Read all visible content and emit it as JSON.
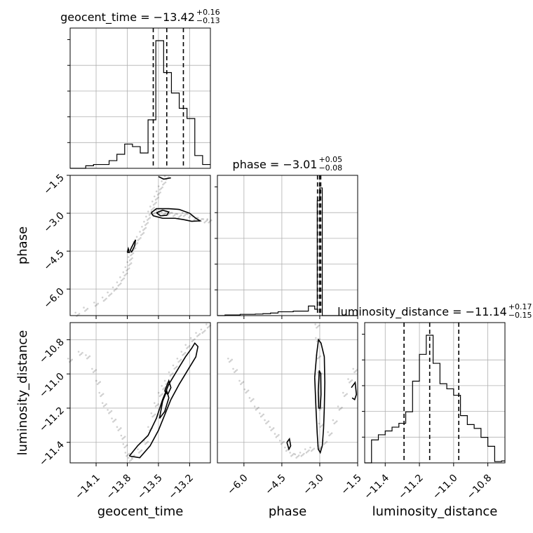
{
  "chart_data": {
    "type": "corner",
    "parameters": [
      {
        "name": "geocent_time",
        "label": "geocent_time",
        "title_value": "−13.42",
        "plus": "+0.16",
        "minus": "−0.13",
        "range": [
          -14.35,
          -13.0
        ],
        "ticks": [
          -14.1,
          -13.8,
          -13.5,
          -13.2
        ],
        "tick_labels": [
          "−14.1",
          "−13.8",
          "−13.5",
          "−13.2"
        ],
        "quantiles": [
          -13.55,
          -13.42,
          -13.26
        ],
        "hist_edges": [
          -14.35,
          -14.275,
          -14.2,
          -14.125,
          -14.05,
          -13.975,
          -13.9,
          -13.825,
          -13.75,
          -13.675,
          -13.6,
          -13.525,
          -13.45,
          -13.375,
          -13.3,
          -13.225,
          -13.15,
          -13.075,
          -13.0
        ],
        "hist_counts": [
          0,
          0,
          0.02,
          0.03,
          0.03,
          0.06,
          0.11,
          0.19,
          0.17,
          0.12,
          0.38,
          1.0,
          0.75,
          0.59,
          0.47,
          0.39,
          0.1,
          0.03
        ]
      },
      {
        "name": "phase",
        "label": "phase",
        "title_value": "−3.01",
        "plus": "+0.05",
        "minus": "−0.08",
        "range": [
          -7.05,
          -1.5
        ],
        "ticks": [
          -6.0,
          -4.5,
          -3.0,
          -1.5
        ],
        "tick_labels": [
          "−6.0",
          "−4.5",
          "−3.0",
          "−1.5"
        ],
        "quantiles": [
          -3.09,
          -3.01,
          -2.96
        ],
        "hist_edges": [
          -7.05,
          -6.75,
          -6.45,
          -6.15,
          -5.85,
          -5.55,
          -5.25,
          -4.95,
          -4.65,
          -4.35,
          -4.05,
          -3.75,
          -3.45,
          -3.2,
          -3.1,
          -3.0,
          -2.9,
          -1.5
        ],
        "hist_counts": [
          0,
          0.005,
          0.005,
          0.01,
          0.01,
          0.012,
          0.015,
          0.02,
          0.03,
          0.03,
          0.035,
          0.035,
          0.075,
          0.05,
          0.9,
          1.0,
          0.0
        ]
      },
      {
        "name": "luminosity_distance",
        "label": "luminosity_distance",
        "title_value": "−11.14",
        "plus": "+0.17",
        "minus": "−0.15",
        "range": [
          -11.52,
          -10.7
        ],
        "ticks": [
          -11.4,
          -11.2,
          -11.0,
          -10.8
        ],
        "tick_labels": [
          "−11.4",
          "−11.2",
          "−11.0",
          "−10.8"
        ],
        "quantiles": [
          -11.29,
          -11.14,
          -10.97
        ],
        "hist_edges": [
          -11.52,
          -11.48,
          -11.44,
          -11.4,
          -11.36,
          -11.32,
          -11.28,
          -11.24,
          -11.2,
          -11.16,
          -11.12,
          -11.08,
          -11.04,
          -11.0,
          -10.96,
          -10.92,
          -10.88,
          -10.84,
          -10.8,
          -10.76,
          -10.72,
          -10.7
        ],
        "hist_counts": [
          0,
          0.18,
          0.22,
          0.25,
          0.28,
          0.31,
          0.4,
          0.64,
          0.85,
          1.0,
          0.78,
          0.62,
          0.58,
          0.53,
          0.37,
          0.3,
          0.27,
          0.2,
          0.13,
          0.01,
          0.015
        ]
      }
    ],
    "panels": [
      {
        "x": "geocent_time",
        "y": "phase",
        "scatter": [
          [
            -14.28,
            -7.0
          ],
          [
            -14.2,
            -6.8
          ],
          [
            -14.1,
            -6.6
          ],
          [
            -14.02,
            -6.4
          ],
          [
            -13.97,
            -6.2
          ],
          [
            -13.92,
            -6.0
          ],
          [
            -13.88,
            -5.8
          ],
          [
            -13.85,
            -5.6
          ],
          [
            -13.82,
            -5.4
          ],
          [
            -13.8,
            -5.2
          ],
          [
            -13.78,
            -5.0
          ],
          [
            -13.77,
            -4.8
          ],
          [
            -13.76,
            -4.6
          ],
          [
            -13.74,
            -4.4
          ],
          [
            -13.72,
            -4.2
          ],
          [
            -13.69,
            -4.0
          ],
          [
            -13.66,
            -3.8
          ],
          [
            -13.64,
            -3.6
          ],
          [
            -13.62,
            -3.4
          ],
          [
            -13.6,
            -3.2
          ],
          [
            -13.58,
            -3.0
          ],
          [
            -13.56,
            -2.8
          ],
          [
            -13.54,
            -2.6
          ],
          [
            -13.52,
            -2.4
          ],
          [
            -13.5,
            -2.2
          ],
          [
            -13.48,
            -2.0
          ],
          [
            -13.45,
            -1.8
          ],
          [
            -13.42,
            -1.6
          ],
          [
            -13.55,
            -3.0
          ],
          [
            -13.5,
            -2.95
          ],
          [
            -13.45,
            -3.02
          ],
          [
            -13.4,
            -3.0
          ],
          [
            -13.35,
            -3.05
          ],
          [
            -13.3,
            -3.1
          ],
          [
            -13.25,
            -3.05
          ],
          [
            -13.2,
            -3.1
          ],
          [
            -13.15,
            -3.2
          ],
          [
            -13.1,
            -3.25
          ],
          [
            -13.05,
            -3.3
          ],
          [
            -13.01,
            -3.3
          ]
        ],
        "contours": [
          [
            [
              -13.57,
              -2.98
            ],
            [
              -13.52,
              -2.82
            ],
            [
              -13.4,
              -2.82
            ],
            [
              -13.3,
              -2.85
            ],
            [
              -13.2,
              -3.0
            ],
            [
              -13.14,
              -3.2
            ],
            [
              -13.1,
              -3.3
            ],
            [
              -13.18,
              -3.32
            ],
            [
              -13.26,
              -3.25
            ],
            [
              -13.34,
              -3.2
            ],
            [
              -13.46,
              -3.2
            ],
            [
              -13.55,
              -3.1
            ],
            [
              -13.57,
              -2.98
            ]
          ],
          [
            [
              -13.52,
              -2.98
            ],
            [
              -13.46,
              -2.88
            ],
            [
              -13.4,
              -2.95
            ],
            [
              -13.42,
              -3.08
            ],
            [
              -13.48,
              -3.1
            ],
            [
              -13.52,
              -2.98
            ]
          ],
          [
            [
              -13.76,
              -4.55
            ],
            [
              -13.73,
              -4.3
            ],
            [
              -13.72,
              -4.05
            ],
            [
              -13.74,
              -4.2
            ],
            [
              -13.77,
              -4.45
            ],
            [
              -13.76,
              -4.55
            ]
          ],
          [
            [
              -13.8,
              -4.55
            ],
            [
              -13.79,
              -4.4
            ],
            [
              -13.78,
              -4.55
            ],
            [
              -13.8,
              -4.55
            ]
          ],
          [
            [
              -13.5,
              -1.55
            ],
            [
              -13.45,
              -1.65
            ],
            [
              -13.38,
              -1.6
            ]
          ]
        ]
      },
      {
        "x": "geocent_time",
        "y": "luminosity_distance",
        "scatter": [
          [
            -14.35,
            -10.92
          ],
          [
            -14.25,
            -10.88
          ],
          [
            -14.18,
            -10.9
          ],
          [
            -14.12,
            -10.98
          ],
          [
            -14.08,
            -11.05
          ],
          [
            -14.05,
            -11.12
          ],
          [
            -14.02,
            -11.18
          ],
          [
            -13.97,
            -11.22
          ],
          [
            -13.93,
            -11.27
          ],
          [
            -13.88,
            -11.32
          ],
          [
            -13.84,
            -11.37
          ],
          [
            -13.82,
            -11.42
          ],
          [
            -13.8,
            -11.47
          ],
          [
            -13.77,
            -11.5
          ],
          [
            -13.75,
            -11.48
          ],
          [
            -13.68,
            -11.45
          ],
          [
            -13.62,
            -11.4
          ],
          [
            -13.58,
            -11.32
          ],
          [
            -13.55,
            -11.24
          ],
          [
            -13.52,
            -11.18
          ],
          [
            -13.48,
            -11.12
          ],
          [
            -13.45,
            -11.08
          ],
          [
            -13.42,
            -11.05
          ],
          [
            -13.38,
            -11.0
          ],
          [
            -13.34,
            -10.96
          ],
          [
            -13.3,
            -10.92
          ],
          [
            -13.26,
            -10.88
          ],
          [
            -13.22,
            -10.84
          ],
          [
            -13.17,
            -10.8
          ],
          [
            -13.12,
            -10.77
          ],
          [
            -13.07,
            -10.75
          ],
          [
            -13.02,
            -10.72
          ]
        ],
        "contours": [
          [
            [
              -13.78,
              -11.48
            ],
            [
              -13.7,
              -11.42
            ],
            [
              -13.6,
              -11.36
            ],
            [
              -13.52,
              -11.26
            ],
            [
              -13.46,
              -11.15
            ],
            [
              -13.4,
              -11.06
            ],
            [
              -13.32,
              -10.98
            ],
            [
              -13.24,
              -10.9
            ],
            [
              -13.18,
              -10.85
            ],
            [
              -13.15,
              -10.82
            ],
            [
              -13.12,
              -10.84
            ],
            [
              -13.14,
              -10.9
            ],
            [
              -13.22,
              -10.98
            ],
            [
              -13.3,
              -11.06
            ],
            [
              -13.38,
              -11.15
            ],
            [
              -13.44,
              -11.24
            ],
            [
              -13.5,
              -11.33
            ],
            [
              -13.58,
              -11.42
            ],
            [
              -13.68,
              -11.49
            ],
            [
              -13.78,
              -11.48
            ]
          ],
          [
            [
              -13.49,
              -11.26
            ],
            [
              -13.46,
              -11.16
            ],
            [
              -13.42,
              -11.1
            ],
            [
              -13.4,
              -11.14
            ],
            [
              -13.44,
              -11.22
            ],
            [
              -13.49,
              -11.26
            ]
          ],
          [
            [
              -13.44,
              -11.1
            ],
            [
              -13.4,
              -11.04
            ],
            [
              -13.38,
              -11.08
            ],
            [
              -13.41,
              -11.12
            ],
            [
              -13.44,
              -11.1
            ]
          ]
        ]
      },
      {
        "x": "phase",
        "y": "luminosity_distance",
        "scatter": [
          [
            -6.55,
            -10.92
          ],
          [
            -6.35,
            -10.98
          ],
          [
            -6.1,
            -11.05
          ],
          [
            -5.9,
            -11.1
          ],
          [
            -5.7,
            -11.15
          ],
          [
            -5.5,
            -11.2
          ],
          [
            -5.3,
            -11.24
          ],
          [
            -5.1,
            -11.28
          ],
          [
            -4.9,
            -11.32
          ],
          [
            -4.7,
            -11.36
          ],
          [
            -4.5,
            -11.4
          ],
          [
            -4.3,
            -11.44
          ],
          [
            -4.1,
            -11.47
          ],
          [
            -3.9,
            -11.48
          ],
          [
            -3.7,
            -11.47
          ],
          [
            -3.5,
            -11.45
          ],
          [
            -3.3,
            -11.44
          ],
          [
            -3.0,
            -11.43
          ],
          [
            -2.8,
            -11.4
          ],
          [
            -2.6,
            -11.35
          ],
          [
            -2.4,
            -11.28
          ],
          [
            -2.2,
            -11.2
          ],
          [
            -2.0,
            -11.12
          ],
          [
            -1.8,
            -11.04
          ],
          [
            -1.6,
            -10.98
          ],
          [
            -3.1,
            -10.72
          ],
          [
            -3.08,
            -10.8
          ],
          [
            -3.05,
            -10.9
          ],
          [
            -3.0,
            -11.0
          ],
          [
            -2.98,
            -11.2
          ],
          [
            -2.95,
            -11.3
          ]
        ],
        "contours": [
          [
            [
              -3.2,
              -11.02
            ],
            [
              -3.12,
              -10.88
            ],
            [
              -3.05,
              -10.8
            ],
            [
              -2.95,
              -10.82
            ],
            [
              -2.82,
              -10.9
            ],
            [
              -2.8,
              -11.05
            ],
            [
              -2.82,
              -11.2
            ],
            [
              -2.85,
              -11.32
            ],
            [
              -2.9,
              -11.42
            ],
            [
              -2.98,
              -11.46
            ],
            [
              -3.06,
              -11.44
            ],
            [
              -3.1,
              -11.35
            ],
            [
              -3.15,
              -11.2
            ],
            [
              -3.2,
              -11.02
            ]
          ],
          [
            [
              -3.06,
              -11.1
            ],
            [
              -3.02,
              -10.98
            ],
            [
              -2.96,
              -11.0
            ],
            [
              -2.95,
              -11.12
            ],
            [
              -2.98,
              -11.2
            ],
            [
              -3.04,
              -11.2
            ],
            [
              -3.06,
              -11.1
            ]
          ],
          [
            [
              -4.3,
              -11.4
            ],
            [
              -4.2,
              -11.38
            ],
            [
              -4.15,
              -11.42
            ],
            [
              -4.22,
              -11.44
            ],
            [
              -4.3,
              -11.4
            ]
          ],
          [
            [
              -1.75,
              -11.08
            ],
            [
              -1.6,
              -11.05
            ],
            [
              -1.55,
              -11.12
            ],
            [
              -1.62,
              -11.15
            ],
            [
              -1.72,
              -11.14
            ]
          ]
        ]
      }
    ]
  }
}
